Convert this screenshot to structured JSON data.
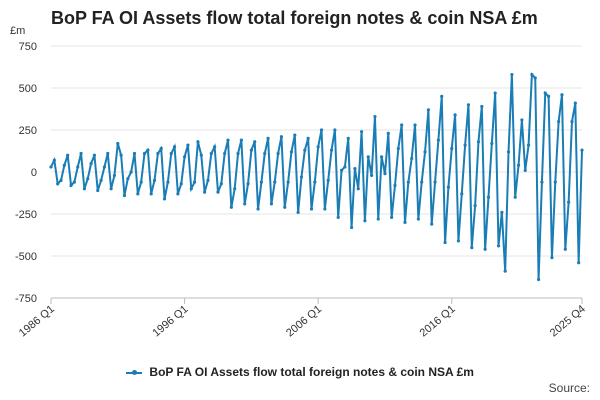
{
  "title": "BoP FA OI Assets flow total foreign notes & coin NSA £m",
  "source_label": "Source:",
  "chart_data": {
    "type": "line",
    "title": "BoP FA OI Assets flow total foreign notes & coin NSA £m",
    "ylabel": "£m",
    "xlabel": "",
    "ylim": [
      -750,
      750
    ],
    "yticks": [
      -750,
      -500,
      -250,
      0,
      250,
      500,
      750
    ],
    "grid": true,
    "legend_position": "bottom",
    "x_start": "1986 Q1",
    "x_end": "2025 Q4",
    "x_tick_labels": [
      "1986 Q1",
      "1996 Q1",
      "2006 Q1",
      "2016 Q1",
      "2025 Q4"
    ],
    "color": "#1a7db5",
    "series": [
      {
        "name": "BoP FA OI Assets flow total foreign notes & coin NSA £m",
        "values": [
          30,
          70,
          -70,
          -50,
          40,
          100,
          -80,
          -60,
          30,
          110,
          -100,
          -40,
          50,
          100,
          -110,
          -50,
          30,
          110,
          -100,
          -20,
          170,
          100,
          -140,
          -40,
          0,
          110,
          -130,
          -60,
          110,
          130,
          -130,
          -50,
          110,
          140,
          -160,
          -60,
          110,
          150,
          -130,
          -70,
          90,
          160,
          -100,
          -60,
          180,
          100,
          -120,
          -50,
          110,
          150,
          -120,
          -70,
          110,
          190,
          -210,
          -100,
          110,
          190,
          -190,
          -70,
          130,
          180,
          -220,
          -60,
          110,
          200,
          -190,
          -60,
          110,
          210,
          -210,
          -60,
          120,
          220,
          -240,
          -30,
          130,
          200,
          -220,
          -60,
          150,
          250,
          -220,
          -50,
          130,
          250,
          -270,
          10,
          30,
          200,
          -330,
          20,
          -100,
          240,
          -290,
          90,
          -20,
          330,
          -280,
          90,
          -10,
          230,
          -270,
          -80,
          140,
          280,
          -300,
          -60,
          80,
          280,
          -280,
          -60,
          120,
          370,
          -310,
          -60,
          190,
          450,
          -420,
          -90,
          140,
          340,
          -410,
          -130,
          160,
          400,
          -450,
          -200,
          180,
          390,
          -460,
          -150,
          170,
          470,
          -440,
          -240,
          -590,
          120,
          580,
          -150,
          40,
          310,
          10,
          160,
          580,
          560,
          -640,
          -60,
          470,
          450,
          -510,
          -60,
          300,
          460,
          -460,
          -180,
          300,
          410,
          -540,
          130
        ]
      }
    ]
  }
}
